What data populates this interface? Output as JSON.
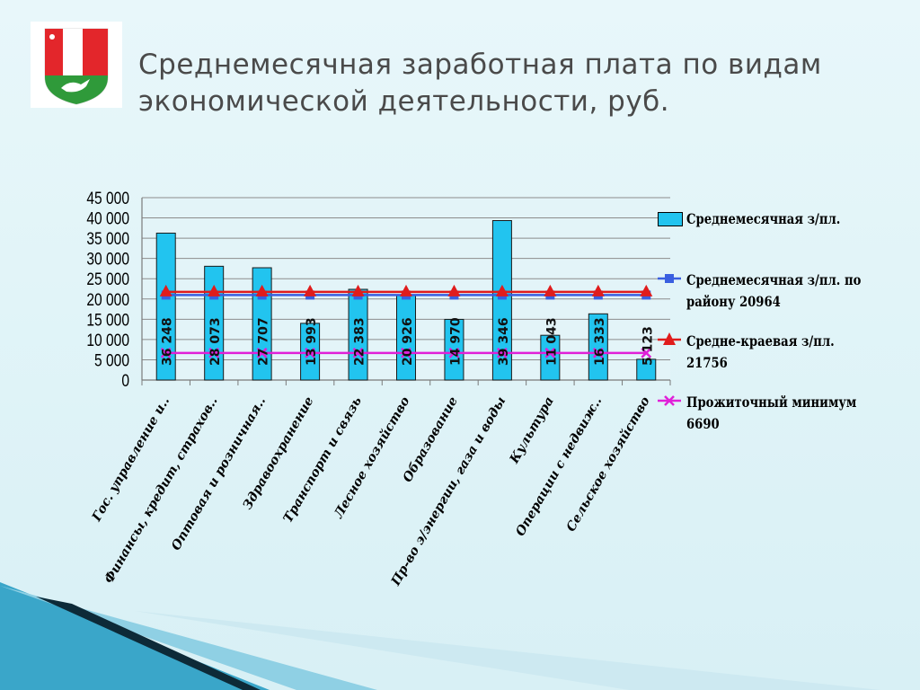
{
  "slide": {
    "title_line1": "Среднемесячная заработная плата по видам",
    "title_line2": "экономической деятельности, руб."
  },
  "chart_data": {
    "type": "bar",
    "categories": [
      "Гос. управление и..",
      "Финансы, кредит, страхов..",
      "Оптовая и розничная..",
      "Здравоохранение",
      "Транспорт и связь",
      "Лесное хозяйство",
      "Образование",
      "Пр-во э/энергии, газа и воды",
      "Культура",
      "Операции с недвиж..",
      "Сельское хозяйство"
    ],
    "values": [
      36248,
      28073,
      27707,
      13993,
      22383,
      20926,
      14970,
      39346,
      11043,
      16333,
      5123
    ],
    "value_labels": [
      "36 248",
      "28 073",
      "27 707",
      "13 993",
      "22 383",
      "20 926",
      "14 970",
      "39 346",
      "11 043",
      "16 333",
      "5 123"
    ],
    "series": [
      {
        "name": "Среднемесячная з/пл.",
        "values": [
          36248,
          28073,
          27707,
          13993,
          22383,
          20926,
          14970,
          39346,
          11043,
          16333,
          5123
        ],
        "color": "#22c4ef"
      },
      {
        "name": "Среднемесячная з/пл. по району 20964",
        "value": 20964,
        "color": "#3a5fe0"
      },
      {
        "name": "Средне-краевая з/пл. 21756",
        "value": 21756,
        "color": "#e01c1c"
      },
      {
        "name": "Прожиточный минимум 6690",
        "value": 6690,
        "color": "#e020d8"
      }
    ],
    "yticks": [
      "0",
      "5 000",
      "10 000",
      "15 000",
      "20 000",
      "25 000",
      "30 000",
      "35 000",
      "40 000",
      "45 000"
    ],
    "ylim": [
      0,
      45000
    ],
    "grid": true,
    "legend_position": "right"
  }
}
